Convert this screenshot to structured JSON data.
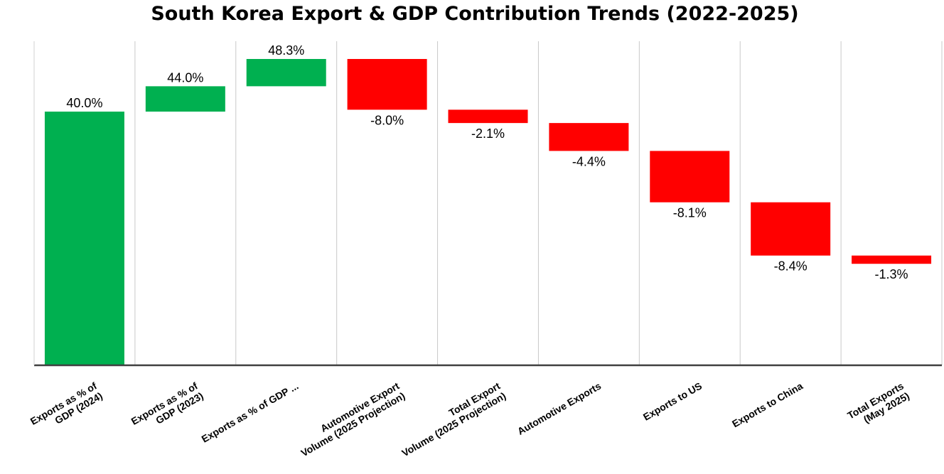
{
  "chart_data": {
    "type": "waterfall",
    "title": "South Korea Export & GDP Contribution Trends (2022-2025)",
    "xlabel": "",
    "ylabel": "",
    "categories": [
      [
        "Exports as % of",
        "GDP (2024)"
      ],
      [
        "Exports as % of",
        "GDP (2023)"
      ],
      [
        "Exports as % of GDP ..."
      ],
      [
        "Automotive Export",
        "Volume (2025 Projection)"
      ],
      [
        "Total Export",
        "Volume (2025 Projection)"
      ],
      [
        "Automotive Exports"
      ],
      [
        "Exports to US"
      ],
      [
        "Exports to China"
      ],
      [
        "Total Exports",
        "(May 2025)"
      ]
    ],
    "values": [
      40.0,
      44.0,
      48.3,
      -8.0,
      -2.1,
      -4.4,
      -8.1,
      -8.4,
      -1.3
    ],
    "value_labels": [
      "40.0%",
      "44.0%",
      "48.3%",
      "-8.0%",
      "-2.1%",
      "-4.4%",
      "-8.1%",
      "-8.4%",
      "-1.3%"
    ],
    "colors": {
      "increase": "#00B050",
      "decrease": "#FF0000"
    },
    "grid": true,
    "legend": "none"
  }
}
